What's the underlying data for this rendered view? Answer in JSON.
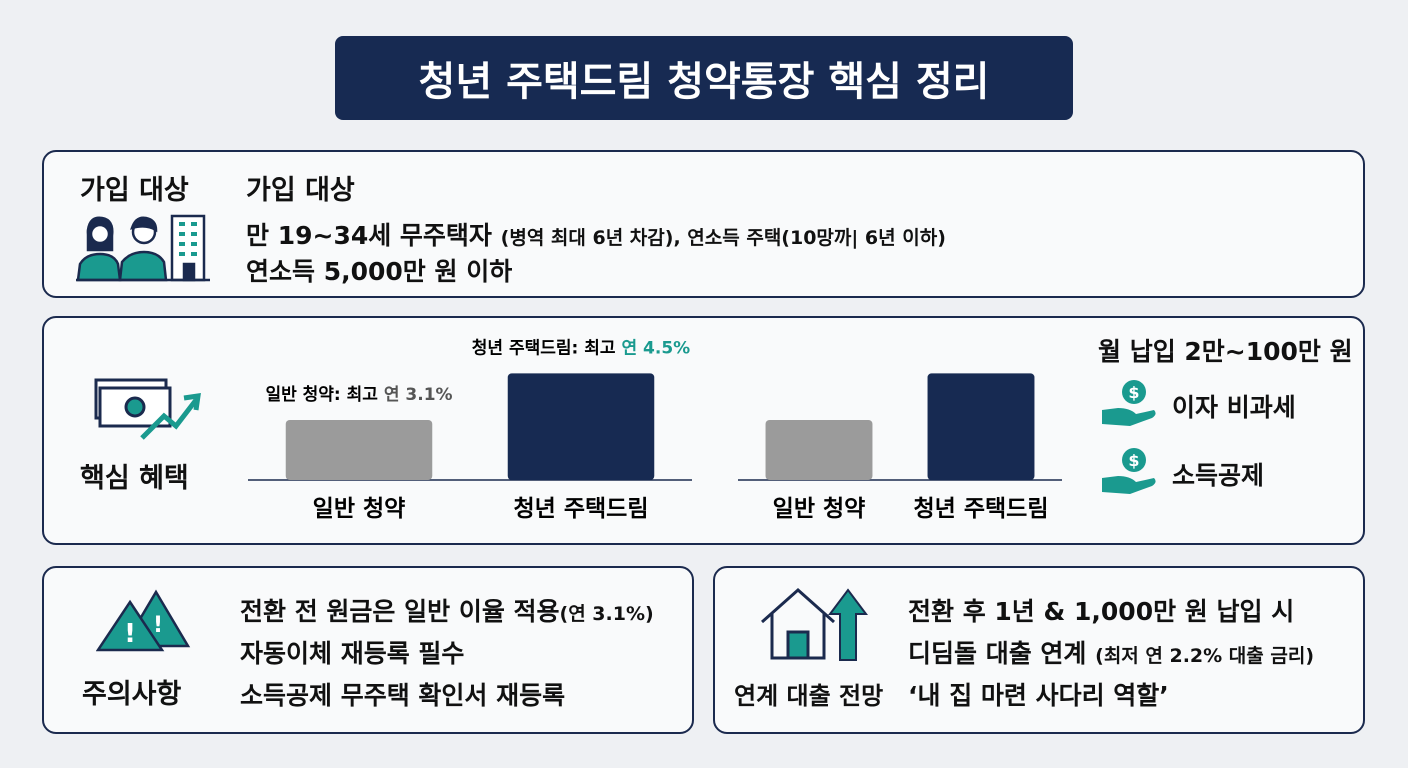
{
  "title": "청년 주택드림 청약통장 핵심 정리",
  "eligibility": {
    "heading": "가입 대상",
    "subheading": "가입 대상",
    "line1_main": "만 19~34세 무주택자",
    "line1_note": "(병역 최대 6년 차감), 연소득 주택(10망까| 6년 이하)",
    "line2": "연소득 5,000만 원 이하"
  },
  "benefits": {
    "heading": "핵심 혜택",
    "charts": [
      {
        "type": "bar",
        "categories": [
          "일반 청약",
          "청년 주택드림"
        ],
        "values": [
          3.1,
          4.5
        ],
        "label_prefixes": [
          "일반 청약: 최고",
          "청년 주택드림: 최고"
        ],
        "value_labels": [
          "연 3.1%",
          "연 4.5%"
        ],
        "value_label_colors": [
          "#555555",
          "#1a9a8f"
        ],
        "colors": [
          "#9b9b9b",
          "#172a52"
        ],
        "ylim": [
          1.3,
          5.2
        ]
      },
      {
        "type": "bar",
        "categories": [
          "일반 청약",
          "청년 주택드림"
        ],
        "values": [
          3.1,
          4.5
        ],
        "colors": [
          "#9b9b9b",
          "#172a52"
        ],
        "ylim": [
          1.3,
          5.2
        ]
      }
    ],
    "payment": "월 납입 2만~100만 원",
    "perks": [
      "이자 비과세",
      "소득공제"
    ]
  },
  "cautions": {
    "heading": "주의사항",
    "line1_main": "전환 전 원금은 일반 이율 적용",
    "line1_note": "(연 3.1%)",
    "line2": "자동이체 재등록 필수",
    "line3": "소득공제 무주택 확인서 재등록"
  },
  "loan": {
    "heading": "연계 대출 전망",
    "line1": "전환 후 1년 & 1,000만 원 납입 시",
    "line2_main": "디딤돌 대출 연계",
    "line2_note": "(최저 연 2.2% 대출 금리)",
    "line3": "‘내 집 마련 사다리 역할’"
  }
}
